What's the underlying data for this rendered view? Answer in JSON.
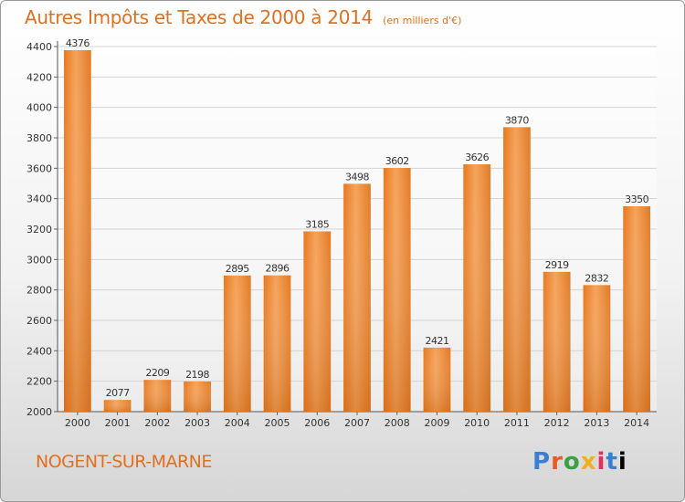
{
  "page": {
    "title": "Autres Impôts et Taxes de 2000 à 2014",
    "unit": "(en milliers d'€)",
    "city": "NOGENT-SUR-MARNE",
    "logo_letters": [
      "P",
      "r",
      "o",
      "x",
      "i",
      "t",
      "i"
    ]
  },
  "chart_data": {
    "type": "bar",
    "title": "Autres Impôts et Taxes de 2000 à 2014",
    "subtitle": "(en milliers d'€)",
    "categories": [
      "2000",
      "2001",
      "2002",
      "2003",
      "2004",
      "2005",
      "2006",
      "2007",
      "2008",
      "2009",
      "2010",
      "2011",
      "2012",
      "2013",
      "2014"
    ],
    "values": [
      4376,
      2077,
      2209,
      2198,
      2895,
      2896,
      3185,
      3498,
      3602,
      2421,
      3626,
      3870,
      2919,
      2832,
      3350
    ],
    "ylim": [
      2000,
      4400
    ],
    "yticks": [
      2000,
      2200,
      2400,
      2600,
      2800,
      3000,
      3200,
      3400,
      3600,
      3800,
      4000,
      4200,
      4400
    ],
    "grid": true,
    "bar_color": "#f0923e",
    "bar_color_dark": "#d9701e"
  }
}
